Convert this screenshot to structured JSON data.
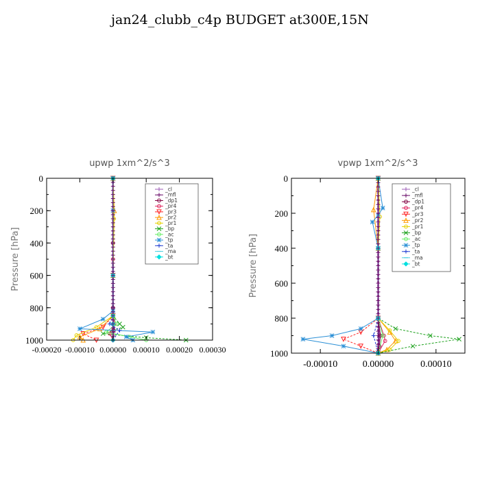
{
  "title": "jan24_clubb_c4p  BUDGET at300E,15N",
  "chart_data": [
    {
      "type": "line",
      "title": "upwp   1xm^2/s^3",
      "ylabel": "Pressure [hPa]",
      "xlim": [
        -0.0002,
        0.0003
      ],
      "ylim": [
        1000,
        0
      ],
      "xticks": [
        "-0.00020",
        "-0.00010",
        "0.00000",
        "0.00010",
        "0.00020",
        "0.00030"
      ],
      "yticks": [
        "0",
        "200",
        "400",
        "600",
        "800",
        "1000"
      ],
      "legend": "top-right",
      "series": [
        {
          "name": "_cl",
          "color": "#9b59b6",
          "marker": "+",
          "points": [
            [
              0,
              0
            ],
            [
              0,
              200
            ],
            [
              0,
              400
            ],
            [
              0,
              600
            ],
            [
              0,
              800
            ],
            [
              0,
              850
            ],
            [
              3e-06,
              900
            ],
            [
              2e-06,
              950
            ],
            [
              0,
              1000
            ]
          ]
        },
        {
          "name": "_mfl",
          "color": "#6a0d6a",
          "marker": "+",
          "points": [
            [
              0,
              0
            ],
            [
              0,
              200
            ],
            [
              0,
              400
            ],
            [
              0,
              600
            ],
            [
              0,
              800
            ],
            [
              0,
              900
            ],
            [
              0,
              1000
            ]
          ]
        },
        {
          "name": "_dp1",
          "color": "#800040",
          "marker": "o",
          "points": [
            [
              0,
              0
            ],
            [
              0,
              400
            ],
            [
              0,
              800
            ],
            [
              0,
              900
            ],
            [
              2e-06,
              940
            ],
            [
              0,
              1000
            ]
          ]
        },
        {
          "name": "_pr4",
          "color": "#e0245e",
          "marker": "o",
          "points": [
            [
              0,
              0
            ],
            [
              0,
              500
            ],
            [
              0,
              850
            ],
            [
              5e-06,
              900
            ],
            [
              -1e-05,
              960
            ],
            [
              0,
              1000
            ]
          ]
        },
        {
          "name": "_pr3",
          "color": "#ff2020",
          "marker": "v",
          "points": [
            [
              0,
              0
            ],
            [
              0,
              600
            ],
            [
              0,
              850
            ],
            [
              -3e-05,
              920
            ],
            [
              -9e-05,
              960
            ],
            [
              -5e-05,
              1000
            ]
          ]
        },
        {
          "name": "_pr2",
          "color": "#ff9900",
          "marker": "^",
          "points": [
            [
              0,
              0
            ],
            [
              4e-06,
              200
            ],
            [
              0,
              600
            ],
            [
              0,
              850
            ],
            [
              -4e-05,
              930
            ],
            [
              -0.0001,
              980
            ],
            [
              -9e-05,
              1000
            ]
          ]
        },
        {
          "name": "_pr1",
          "color": "#e6d000",
          "marker": "o",
          "points": [
            [
              0,
              0
            ],
            [
              3e-06,
              250
            ],
            [
              0,
              600
            ],
            [
              0,
              850
            ],
            [
              -5e-05,
              920
            ],
            [
              -0.00011,
              970
            ],
            [
              -0.00012,
              1000
            ]
          ]
        },
        {
          "name": "_bp",
          "color": "#1aa01a",
          "marker": "x",
          "points": [
            [
              0,
              0
            ],
            [
              0,
              600
            ],
            [
              0,
              850
            ],
            [
              2e-05,
              900
            ],
            [
              3e-05,
              920
            ],
            [
              -3e-05,
              960
            ],
            [
              0.0001,
              985
            ],
            [
              0.00022,
              1000
            ]
          ]
        },
        {
          "name": "_ac",
          "color": "#66ee66",
          "marker": "o",
          "points": [
            [
              0,
              0
            ],
            [
              0,
              600
            ],
            [
              0,
              850
            ],
            [
              1e-05,
              900
            ],
            [
              -2e-05,
              950
            ],
            [
              5e-05,
              980
            ],
            [
              0.0001,
              1000
            ]
          ]
        },
        {
          "name": "_tp",
          "color": "#2a8fd6",
          "marker": "*",
          "points": [
            [
              0,
              0
            ],
            [
              0,
              200
            ],
            [
              0,
              600
            ],
            [
              0,
              820
            ],
            [
              -3e-05,
              870
            ],
            [
              -0.0001,
              930
            ],
            [
              0.00012,
              950
            ],
            [
              4e-05,
              980
            ],
            [
              6e-05,
              1000
            ]
          ]
        },
        {
          "name": "_ta",
          "color": "#1f3bd1",
          "marker": "+",
          "points": [
            [
              0,
              0
            ],
            [
              0,
              600
            ],
            [
              0,
              850
            ],
            [
              -1e-05,
              900
            ],
            [
              2e-05,
              940
            ],
            [
              0,
              1000
            ]
          ]
        },
        {
          "name": "_ma",
          "color": "#4ad0e0",
          "marker": "-",
          "points": [
            [
              0,
              0
            ],
            [
              0,
              600
            ],
            [
              0,
              850
            ],
            [
              0,
              900
            ],
            [
              0,
              1000
            ]
          ]
        },
        {
          "name": "_bt",
          "color": "#00e0e0",
          "marker": "d",
          "points": [
            [
              0,
              0
            ],
            [
              0,
              600
            ],
            [
              0,
              850
            ],
            [
              0,
              900
            ],
            [
              0,
              1000
            ]
          ]
        }
      ]
    },
    {
      "type": "line",
      "title": "vpwp   1xm^2/s^3",
      "ylabel": "Pressure [hPa]",
      "xlim": [
        -0.00015,
        0.00015
      ],
      "ylim": [
        1000,
        0
      ],
      "xticks": [
        "-0.00010",
        "0.00000",
        "0.00010"
      ],
      "yticks": [
        "0",
        "200",
        "400",
        "600",
        "800",
        "1000"
      ],
      "legend": "top-right",
      "series": [
        {
          "name": "_cl",
          "color": "#9b59b6",
          "marker": "+",
          "points": [
            [
              0,
              0
            ],
            [
              0,
              400
            ],
            [
              0,
              800
            ],
            [
              2e-06,
              900
            ],
            [
              0,
              1000
            ]
          ]
        },
        {
          "name": "_mfl",
          "color": "#6a0d6a",
          "marker": "+",
          "points": [
            [
              0,
              0
            ],
            [
              0,
              400
            ],
            [
              0,
              800
            ],
            [
              0,
              1000
            ]
          ]
        },
        {
          "name": "_dp1",
          "color": "#800040",
          "marker": "o",
          "points": [
            [
              0,
              0
            ],
            [
              0,
              800
            ],
            [
              4e-06,
              900
            ],
            [
              2e-06,
              960
            ],
            [
              0,
              1000
            ]
          ]
        },
        {
          "name": "_pr4",
          "color": "#e0245e",
          "marker": "o",
          "points": [
            [
              0,
              0
            ],
            [
              0,
              800
            ],
            [
              1e-05,
              900
            ],
            [
              1.2e-05,
              930
            ],
            [
              0,
              1000
            ]
          ]
        },
        {
          "name": "_pr3",
          "color": "#ff2020",
          "marker": "v",
          "points": [
            [
              0,
              0
            ],
            [
              0,
              800
            ],
            [
              -3e-05,
              880
            ],
            [
              -6e-05,
              920
            ],
            [
              -3e-05,
              960
            ],
            [
              0,
              1000
            ]
          ]
        },
        {
          "name": "_pr2",
          "color": "#ff9900",
          "marker": "^",
          "points": [
            [
              0,
              0
            ],
            [
              -8e-06,
              180
            ],
            [
              0,
              400
            ],
            [
              0,
              800
            ],
            [
              2e-05,
              880
            ],
            [
              3e-05,
              930
            ],
            [
              1.5e-05,
              980
            ],
            [
              0,
              1000
            ]
          ]
        },
        {
          "name": "_pr1",
          "color": "#e6d000",
          "marker": "o",
          "points": [
            [
              0,
              0
            ],
            [
              3e-06,
              220
            ],
            [
              0,
              400
            ],
            [
              0,
              800
            ],
            [
              2e-05,
              870
            ],
            [
              3.5e-05,
              930
            ],
            [
              2e-05,
              980
            ],
            [
              0,
              1000
            ]
          ]
        },
        {
          "name": "_bp",
          "color": "#1aa01a",
          "marker": "x",
          "points": [
            [
              0,
              0
            ],
            [
              0,
              400
            ],
            [
              0,
              800
            ],
            [
              3e-05,
              860
            ],
            [
              9e-05,
              900
            ],
            [
              0.00014,
              920
            ],
            [
              6e-05,
              960
            ],
            [
              0,
              1000
            ]
          ]
        },
        {
          "name": "_ac",
          "color": "#66ee66",
          "marker": "o",
          "points": [
            [
              0,
              0
            ],
            [
              0,
              400
            ],
            [
              0,
              800
            ],
            [
              8e-06,
              900
            ],
            [
              0,
              1000
            ]
          ]
        },
        {
          "name": "_tp",
          "color": "#2a8fd6",
          "marker": "*",
          "points": [
            [
              0,
              0
            ],
            [
              8e-06,
              170
            ],
            [
              0,
              210
            ],
            [
              -1e-05,
              250
            ],
            [
              0,
              400
            ],
            [
              0,
              800
            ],
            [
              -3e-05,
              860
            ],
            [
              -8e-05,
              900
            ],
            [
              -0.00013,
              920
            ],
            [
              -6e-05,
              960
            ],
            [
              0,
              1000
            ]
          ]
        },
        {
          "name": "_ta",
          "color": "#1f3bd1",
          "marker": "+",
          "points": [
            [
              0,
              0
            ],
            [
              0,
              400
            ],
            [
              0,
              800
            ],
            [
              -8e-06,
              900
            ],
            [
              0,
              1000
            ]
          ]
        },
        {
          "name": "_ma",
          "color": "#4ad0e0",
          "marker": "-",
          "points": [
            [
              0,
              0
            ],
            [
              0,
              400
            ],
            [
              0,
              800
            ],
            [
              0,
              1000
            ]
          ]
        },
        {
          "name": "_bt",
          "color": "#00e0e0",
          "marker": "d",
          "points": [
            [
              0,
              0
            ],
            [
              0,
              400
            ],
            [
              0,
              800
            ],
            [
              0,
              1000
            ]
          ]
        }
      ]
    }
  ]
}
